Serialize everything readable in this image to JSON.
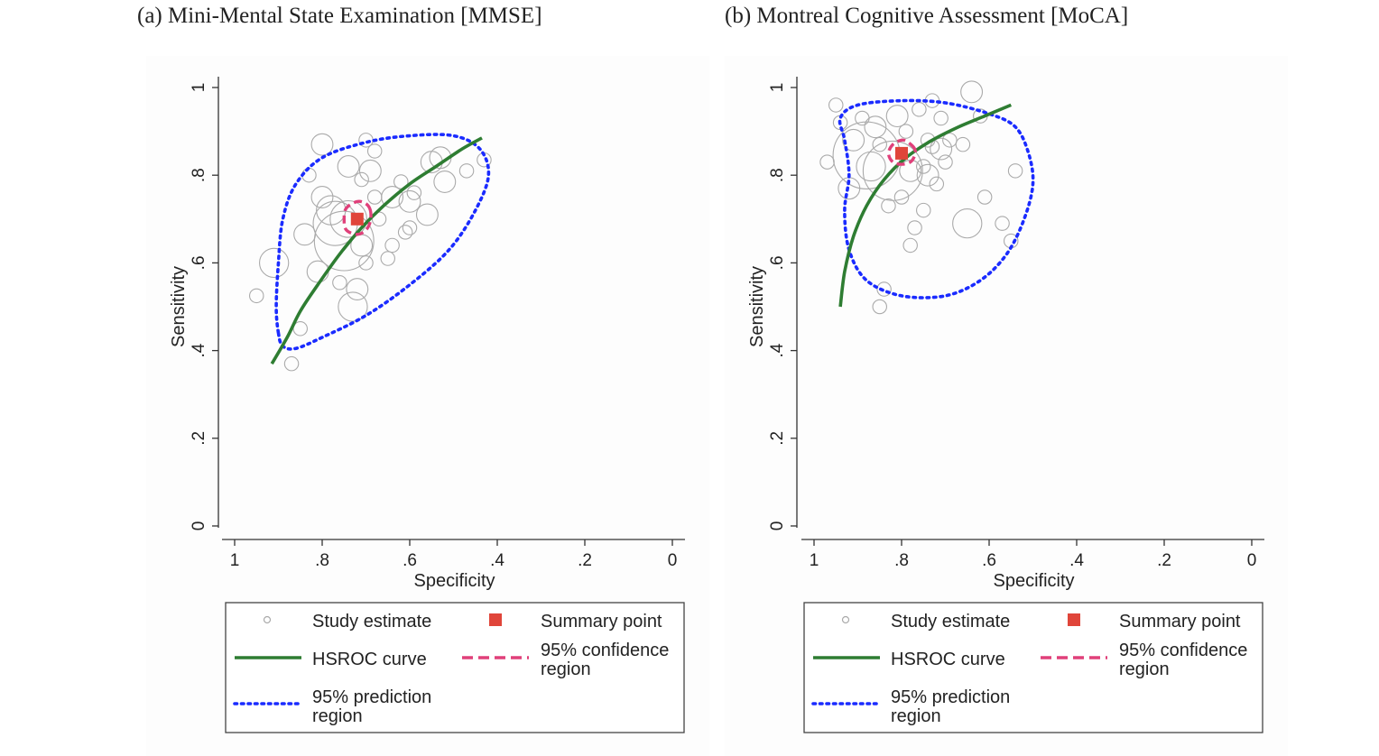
{
  "colors": {
    "hsroc": "#2e7d32",
    "prediction": "#1a2bff",
    "confidence": "#e0407a",
    "summary": "#e0453a",
    "study": "#aaaaaa"
  },
  "chart_data": [
    {
      "type": "scatter",
      "title": "(a) Mini-Mental State Examination [MMSE]",
      "xlabel": "Specificity",
      "ylabel": "Sensitivity",
      "xlim": [
        1,
        0
      ],
      "ylim": [
        0,
        1
      ],
      "x_ticks": [
        "1",
        ".8",
        ".6",
        ".4",
        ".2",
        "0"
      ],
      "y_ticks": [
        "0",
        ".2",
        ".4",
        ".6",
        ".8",
        "1"
      ],
      "grid": false,
      "legend_position": "bottom",
      "legend": {
        "study": "Study estimate",
        "summary": "Summary point",
        "hsroc": "HSROC curve",
        "confidence": [
          "95% confidence",
          "region"
        ],
        "prediction": [
          "95% prediction",
          "region"
        ]
      },
      "summary_point": {
        "spec": 0.72,
        "sens": 0.7
      },
      "hsroc_curve": [
        [
          0.915,
          0.37
        ],
        [
          0.88,
          0.43
        ],
        [
          0.85,
          0.49
        ],
        [
          0.81,
          0.55
        ],
        [
          0.76,
          0.62
        ],
        [
          0.71,
          0.68
        ],
        [
          0.66,
          0.73
        ],
        [
          0.6,
          0.78
        ],
        [
          0.54,
          0.82
        ],
        [
          0.48,
          0.86
        ],
        [
          0.435,
          0.885
        ]
      ],
      "confidence_region": [
        [
          0.69,
          0.72
        ],
        [
          0.7,
          0.735
        ],
        [
          0.72,
          0.74
        ],
        [
          0.745,
          0.725
        ],
        [
          0.75,
          0.7
        ],
        [
          0.745,
          0.675
        ],
        [
          0.72,
          0.665
        ],
        [
          0.7,
          0.675
        ],
        [
          0.69,
          0.695
        ]
      ],
      "prediction_region": [
        [
          0.9,
          0.44
        ],
        [
          0.89,
          0.41
        ],
        [
          0.86,
          0.405
        ],
        [
          0.8,
          0.43
        ],
        [
          0.7,
          0.48
        ],
        [
          0.6,
          0.55
        ],
        [
          0.51,
          0.63
        ],
        [
          0.45,
          0.72
        ],
        [
          0.42,
          0.8
        ],
        [
          0.44,
          0.86
        ],
        [
          0.5,
          0.89
        ],
        [
          0.6,
          0.89
        ],
        [
          0.7,
          0.875
        ],
        [
          0.8,
          0.84
        ],
        [
          0.86,
          0.78
        ],
        [
          0.89,
          0.7
        ],
        [
          0.9,
          0.6
        ],
        [
          0.905,
          0.5
        ]
      ],
      "studies": [
        {
          "spec": 0.95,
          "sens": 0.525,
          "w": 1
        },
        {
          "spec": 0.91,
          "sens": 0.6,
          "w": 3
        },
        {
          "spec": 0.87,
          "sens": 0.37,
          "w": 1
        },
        {
          "spec": 0.85,
          "sens": 0.45,
          "w": 1
        },
        {
          "spec": 0.84,
          "sens": 0.665,
          "w": 2
        },
        {
          "spec": 0.83,
          "sens": 0.8,
          "w": 1
        },
        {
          "spec": 0.81,
          "sens": 0.58,
          "w": 2
        },
        {
          "spec": 0.8,
          "sens": 0.87,
          "w": 2
        },
        {
          "spec": 0.8,
          "sens": 0.75,
          "w": 2
        },
        {
          "spec": 0.78,
          "sens": 0.72,
          "w": 3
        },
        {
          "spec": 0.77,
          "sens": 0.69,
          "w": 5
        },
        {
          "spec": 0.76,
          "sens": 0.555,
          "w": 1
        },
        {
          "spec": 0.75,
          "sens": 0.65,
          "w": 7
        },
        {
          "spec": 0.74,
          "sens": 0.7,
          "w": 4
        },
        {
          "spec": 0.74,
          "sens": 0.82,
          "w": 2
        },
        {
          "spec": 0.73,
          "sens": 0.5,
          "w": 3
        },
        {
          "spec": 0.72,
          "sens": 0.54,
          "w": 2
        },
        {
          "spec": 0.71,
          "sens": 0.79,
          "w": 1
        },
        {
          "spec": 0.71,
          "sens": 0.64,
          "w": 2
        },
        {
          "spec": 0.7,
          "sens": 0.88,
          "w": 1
        },
        {
          "spec": 0.7,
          "sens": 0.6,
          "w": 1
        },
        {
          "spec": 0.69,
          "sens": 0.81,
          "w": 2
        },
        {
          "spec": 0.68,
          "sens": 0.855,
          "w": 1
        },
        {
          "spec": 0.68,
          "sens": 0.75,
          "w": 1
        },
        {
          "spec": 0.67,
          "sens": 0.7,
          "w": 1
        },
        {
          "spec": 0.65,
          "sens": 0.61,
          "w": 1
        },
        {
          "spec": 0.64,
          "sens": 0.64,
          "w": 1
        },
        {
          "spec": 0.64,
          "sens": 0.75,
          "w": 2
        },
        {
          "spec": 0.62,
          "sens": 0.785,
          "w": 1
        },
        {
          "spec": 0.61,
          "sens": 0.67,
          "w": 1
        },
        {
          "spec": 0.6,
          "sens": 0.68,
          "w": 1
        },
        {
          "spec": 0.6,
          "sens": 0.74,
          "w": 2
        },
        {
          "spec": 0.59,
          "sens": 0.76,
          "w": 1
        },
        {
          "spec": 0.56,
          "sens": 0.71,
          "w": 2
        },
        {
          "spec": 0.55,
          "sens": 0.83,
          "w": 2
        },
        {
          "spec": 0.53,
          "sens": 0.84,
          "w": 2
        },
        {
          "spec": 0.52,
          "sens": 0.785,
          "w": 2
        },
        {
          "spec": 0.47,
          "sens": 0.81,
          "w": 1
        },
        {
          "spec": 0.43,
          "sens": 0.835,
          "w": 1
        }
      ]
    },
    {
      "type": "scatter",
      "title": "(b) Montreal Cognitive Assessment [MoCA]",
      "xlabel": "Specificity",
      "ylabel": "Sensitivity",
      "xlim": [
        1,
        0
      ],
      "ylim": [
        0,
        1
      ],
      "x_ticks": [
        "1",
        ".8",
        ".6",
        ".4",
        ".2",
        "0"
      ],
      "y_ticks": [
        "0",
        ".2",
        ".4",
        ".6",
        ".8",
        "1"
      ],
      "grid": false,
      "legend_position": "bottom",
      "legend": {
        "study": "Study estimate",
        "summary": "Summary point",
        "hsroc": "HSROC curve",
        "confidence": [
          "95% confidence",
          "region"
        ],
        "prediction": [
          "95% prediction",
          "region"
        ]
      },
      "summary_point": {
        "spec": 0.8,
        "sens": 0.85
      },
      "hsroc_curve": [
        [
          0.94,
          0.5
        ],
        [
          0.93,
          0.58
        ],
        [
          0.91,
          0.66
        ],
        [
          0.88,
          0.73
        ],
        [
          0.84,
          0.79
        ],
        [
          0.79,
          0.84
        ],
        [
          0.73,
          0.88
        ],
        [
          0.67,
          0.91
        ],
        [
          0.61,
          0.935
        ],
        [
          0.55,
          0.96
        ]
      ],
      "confidence_region": [
        [
          0.77,
          0.86
        ],
        [
          0.785,
          0.875
        ],
        [
          0.8,
          0.88
        ],
        [
          0.82,
          0.87
        ],
        [
          0.83,
          0.85
        ],
        [
          0.82,
          0.83
        ],
        [
          0.8,
          0.825
        ],
        [
          0.78,
          0.83
        ],
        [
          0.77,
          0.845
        ]
      ],
      "prediction_region": [
        [
          0.93,
          0.72
        ],
        [
          0.92,
          0.8
        ],
        [
          0.93,
          0.88
        ],
        [
          0.94,
          0.93
        ],
        [
          0.9,
          0.96
        ],
        [
          0.8,
          0.97
        ],
        [
          0.7,
          0.965
        ],
        [
          0.6,
          0.94
        ],
        [
          0.54,
          0.91
        ],
        [
          0.51,
          0.85
        ],
        [
          0.5,
          0.78
        ],
        [
          0.52,
          0.7
        ],
        [
          0.56,
          0.62
        ],
        [
          0.62,
          0.56
        ],
        [
          0.7,
          0.525
        ],
        [
          0.8,
          0.525
        ],
        [
          0.88,
          0.56
        ],
        [
          0.92,
          0.63
        ]
      ],
      "studies": [
        {
          "spec": 0.97,
          "sens": 0.83,
          "w": 1
        },
        {
          "spec": 0.95,
          "sens": 0.96,
          "w": 1
        },
        {
          "spec": 0.94,
          "sens": 0.92,
          "w": 1
        },
        {
          "spec": 0.92,
          "sens": 0.77,
          "w": 2
        },
        {
          "spec": 0.91,
          "sens": 0.88,
          "w": 2
        },
        {
          "spec": 0.89,
          "sens": 0.93,
          "w": 1
        },
        {
          "spec": 0.88,
          "sens": 0.845,
          "w": 8
        },
        {
          "spec": 0.87,
          "sens": 0.82,
          "w": 3
        },
        {
          "spec": 0.86,
          "sens": 0.91,
          "w": 2
        },
        {
          "spec": 0.85,
          "sens": 0.87,
          "w": 1
        },
        {
          "spec": 0.85,
          "sens": 0.5,
          "w": 1
        },
        {
          "spec": 0.84,
          "sens": 0.54,
          "w": 1
        },
        {
          "spec": 0.83,
          "sens": 0.73,
          "w": 1
        },
        {
          "spec": 0.82,
          "sens": 0.81,
          "w": 7
        },
        {
          "spec": 0.81,
          "sens": 0.935,
          "w": 2
        },
        {
          "spec": 0.8,
          "sens": 0.75,
          "w": 1
        },
        {
          "spec": 0.79,
          "sens": 0.9,
          "w": 1
        },
        {
          "spec": 0.78,
          "sens": 0.81,
          "w": 2
        },
        {
          "spec": 0.78,
          "sens": 0.64,
          "w": 1
        },
        {
          "spec": 0.77,
          "sens": 0.68,
          "w": 1
        },
        {
          "spec": 0.76,
          "sens": 0.95,
          "w": 1
        },
        {
          "spec": 0.75,
          "sens": 0.82,
          "w": 1
        },
        {
          "spec": 0.75,
          "sens": 0.72,
          "w": 1
        },
        {
          "spec": 0.74,
          "sens": 0.88,
          "w": 1
        },
        {
          "spec": 0.74,
          "sens": 0.8,
          "w": 2
        },
        {
          "spec": 0.73,
          "sens": 0.97,
          "w": 1
        },
        {
          "spec": 0.73,
          "sens": 0.865,
          "w": 1
        },
        {
          "spec": 0.72,
          "sens": 0.78,
          "w": 1
        },
        {
          "spec": 0.71,
          "sens": 0.86,
          "w": 2
        },
        {
          "spec": 0.71,
          "sens": 0.93,
          "w": 1
        },
        {
          "spec": 0.7,
          "sens": 0.83,
          "w": 1
        },
        {
          "spec": 0.69,
          "sens": 0.88,
          "w": 1
        },
        {
          "spec": 0.66,
          "sens": 0.87,
          "w": 1
        },
        {
          "spec": 0.65,
          "sens": 0.69,
          "w": 3
        },
        {
          "spec": 0.64,
          "sens": 0.99,
          "w": 2
        },
        {
          "spec": 0.62,
          "sens": 0.935,
          "w": 1
        },
        {
          "spec": 0.61,
          "sens": 0.75,
          "w": 1
        },
        {
          "spec": 0.57,
          "sens": 0.69,
          "w": 1
        },
        {
          "spec": 0.55,
          "sens": 0.65,
          "w": 1
        },
        {
          "spec": 0.54,
          "sens": 0.81,
          "w": 1
        }
      ]
    }
  ]
}
